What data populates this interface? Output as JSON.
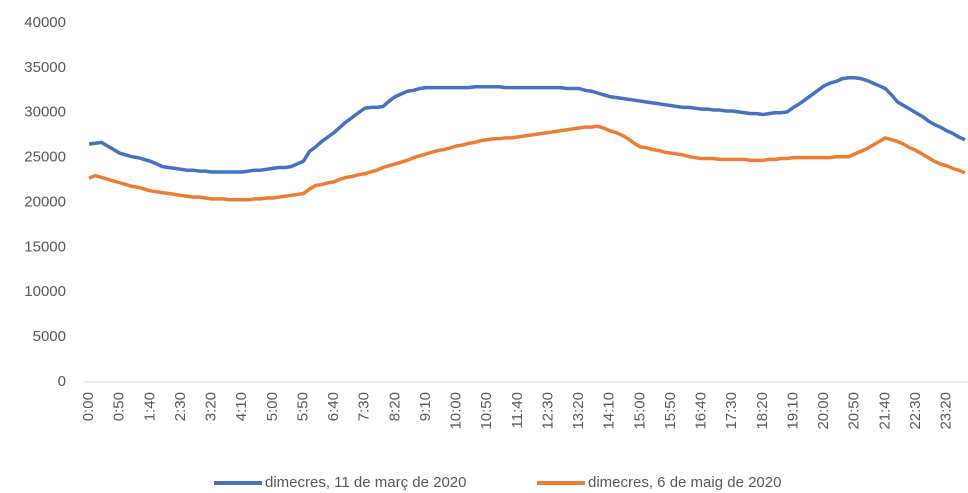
{
  "chart_data": {
    "type": "line",
    "categories": [
      "0:00",
      null,
      null,
      null,
      null,
      "0:50",
      null,
      null,
      null,
      null,
      "1:40",
      null,
      null,
      null,
      null,
      "2:30",
      null,
      null,
      null,
      null,
      "3:20",
      null,
      null,
      null,
      null,
      "4:10",
      null,
      null,
      null,
      null,
      "5:00",
      null,
      null,
      null,
      null,
      "5:50",
      null,
      null,
      null,
      null,
      "6:40",
      null,
      null,
      null,
      null,
      "7:30",
      null,
      null,
      null,
      null,
      "8:20",
      null,
      null,
      null,
      null,
      "9:10",
      null,
      null,
      null,
      null,
      "10:00",
      null,
      null,
      null,
      null,
      "10:50",
      null,
      null,
      null,
      null,
      "11:40",
      null,
      null,
      null,
      null,
      "12:30",
      null,
      null,
      null,
      null,
      "13:20",
      null,
      null,
      null,
      null,
      "14:10",
      null,
      null,
      null,
      null,
      "15:00",
      null,
      null,
      null,
      null,
      "15:50",
      null,
      null,
      null,
      null,
      "16:40",
      null,
      null,
      null,
      null,
      "17:30",
      null,
      null,
      null,
      null,
      "18:20",
      null,
      null,
      null,
      null,
      "19:10",
      null,
      null,
      null,
      null,
      "20:00",
      null,
      null,
      null,
      null,
      "20:50",
      null,
      null,
      null,
      null,
      "21:40",
      null,
      null,
      null,
      null,
      "22:30",
      null,
      null,
      null,
      null,
      "23:20",
      null,
      null,
      null
    ],
    "series": [
      {
        "name": "dimecres, 11 de març de 2020",
        "color": "#4472c4",
        "values": [
          26500,
          26600,
          26700,
          26300,
          25900,
          25500,
          25300,
          25100,
          25000,
          24800,
          24600,
          24300,
          24000,
          23900,
          23800,
          23700,
          23600,
          23600,
          23500,
          23500,
          23400,
          23400,
          23400,
          23400,
          23400,
          23400,
          23500,
          23600,
          23600,
          23700,
          23800,
          23900,
          23900,
          24000,
          24300,
          24600,
          25700,
          26200,
          26800,
          27300,
          27800,
          28400,
          29000,
          29500,
          30000,
          30500,
          30600,
          30600,
          30700,
          31300,
          31800,
          32100,
          32400,
          32500,
          32700,
          32800,
          32800,
          32800,
          32800,
          32800,
          32800,
          32800,
          32800,
          32900,
          32900,
          32900,
          32900,
          32900,
          32800,
          32800,
          32800,
          32800,
          32800,
          32800,
          32800,
          32800,
          32800,
          32800,
          32700,
          32700,
          32700,
          32500,
          32400,
          32200,
          32000,
          31800,
          31700,
          31600,
          31500,
          31400,
          31300,
          31200,
          31100,
          31000,
          30900,
          30800,
          30700,
          30600,
          30600,
          30500,
          30400,
          30400,
          30300,
          30300,
          30200,
          30200,
          30100,
          30000,
          29900,
          29900,
          29800,
          29900,
          30000,
          30000,
          30100,
          30600,
          31000,
          31500,
          32000,
          32500,
          33000,
          33300,
          33500,
          33800,
          33900,
          33900,
          33800,
          33600,
          33300,
          33000,
          32700,
          32000,
          31200,
          30800,
          30400,
          30000,
          29600,
          29100,
          28700,
          28400,
          28000,
          27700,
          27300,
          27000
        ]
      },
      {
        "name": "dimecres, 6 de maig de 2020",
        "color": "#ed7d31",
        "values": [
          22700,
          23000,
          22800,
          22600,
          22400,
          22200,
          22000,
          21800,
          21700,
          21500,
          21300,
          21200,
          21100,
          21000,
          20900,
          20800,
          20700,
          20600,
          20600,
          20500,
          20400,
          20400,
          20400,
          20300,
          20300,
          20300,
          20300,
          20400,
          20400,
          20500,
          20500,
          20600,
          20700,
          20800,
          20900,
          21000,
          21500,
          21900,
          22000,
          22200,
          22300,
          22600,
          22800,
          22900,
          23100,
          23200,
          23400,
          23600,
          23900,
          24100,
          24300,
          24500,
          24700,
          25000,
          25200,
          25400,
          25600,
          25800,
          25900,
          26100,
          26300,
          26400,
          26600,
          26700,
          26900,
          27000,
          27100,
          27100,
          27200,
          27200,
          27300,
          27400,
          27500,
          27600,
          27700,
          27800,
          27900,
          28000,
          28100,
          28200,
          28300,
          28400,
          28400,
          28500,
          28300,
          28000,
          27800,
          27500,
          27100,
          26600,
          26200,
          26100,
          25900,
          25800,
          25600,
          25500,
          25400,
          25300,
          25100,
          25000,
          24900,
          24900,
          24900,
          24800,
          24800,
          24800,
          24800,
          24800,
          24700,
          24700,
          24700,
          24800,
          24800,
          24900,
          24900,
          25000,
          25000,
          25000,
          25000,
          25000,
          25000,
          25000,
          25100,
          25100,
          25100,
          25400,
          25700,
          26000,
          26400,
          26800,
          27200,
          27000,
          26800,
          26500,
          26100,
          25800,
          25400,
          25000,
          24600,
          24300,
          24100,
          23800,
          23600,
          23300
        ]
      }
    ],
    "ylim": [
      0,
      40000
    ],
    "yticks": [
      0,
      5000,
      10000,
      15000,
      20000,
      25000,
      30000,
      35000,
      40000
    ],
    "grid": false,
    "legend": "bottom"
  }
}
